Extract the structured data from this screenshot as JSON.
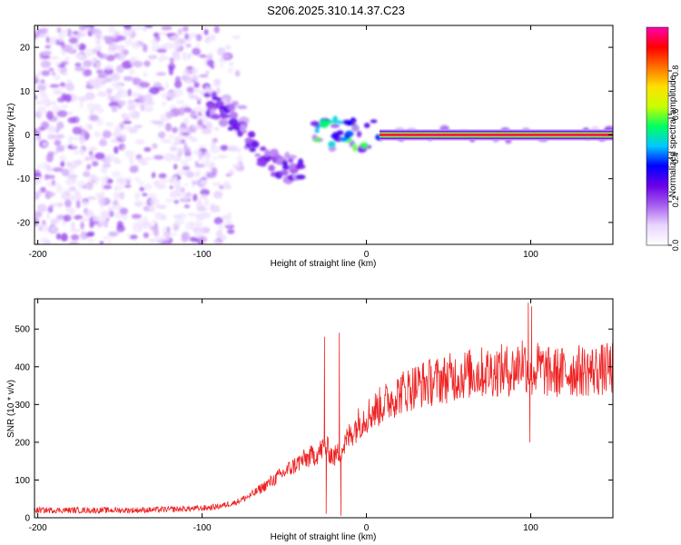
{
  "title": "S206.2025.310.14.37.C23",
  "chart_data": [
    {
      "type": "heatmap",
      "name": "spectrogram",
      "xlabel": "Height of straight line (km)",
      "ylabel": "Frequency (Hz)",
      "xlim": [
        -202,
        150
      ],
      "ylim": [
        -25,
        25
      ],
      "xticks": [
        -200,
        -100,
        0,
        100
      ],
      "xtick_labels": [
        "-200",
        "-100",
        "0",
        "100"
      ],
      "yticks": [
        20,
        10,
        0,
        -10,
        -20
      ],
      "ytick_labels": [
        "20",
        "10",
        "0",
        "-10",
        "-20"
      ],
      "colorbar": {
        "label": "Normalized spectral amplitude",
        "range": [
          0.0,
          1.0
        ],
        "ticks": [
          0.0,
          0.2,
          0.4,
          0.6,
          0.8
        ],
        "tick_labels": [
          "0.0",
          "0.2",
          "0.4",
          "0.6",
          "0.8"
        ],
        "colors": [
          "#ffffff",
          "#e9d6ff",
          "#a860f0",
          "#6a00e8",
          "#0000ff",
          "#00c8ff",
          "#00ff60",
          "#c8ff00",
          "#ffe000",
          "#ff7000",
          "#ff0000",
          "#ff00b0"
        ]
      },
      "features": {
        "noise_region_x": [
          -202,
          -95
        ],
        "descending_band": [
          {
            "x": -98,
            "y": 8
          },
          {
            "x": -90,
            "y": 6
          },
          {
            "x": -82,
            "y": 4
          },
          {
            "x": -75,
            "y": 1
          },
          {
            "x": -68,
            "y": -3
          },
          {
            "x": -60,
            "y": -6
          },
          {
            "x": -52,
            "y": -7
          },
          {
            "x": -45,
            "y": -8
          },
          {
            "x": -38,
            "y": -6
          }
        ],
        "carrier_line": {
          "x_start": 8,
          "x_end": 150,
          "frequency_hz": 0,
          "amplitude": 0.95
        }
      }
    },
    {
      "type": "line",
      "name": "snr",
      "xlabel": "Height of straight line (km)",
      "ylabel": "SNR (10 * v/v)",
      "xlim": [
        -202,
        150
      ],
      "ylim": [
        0,
        580
      ],
      "xticks": [
        -200,
        -100,
        0,
        100
      ],
      "xtick_labels": [
        "-200",
        "-100",
        "0",
        "100"
      ],
      "yticks": [
        0,
        100,
        200,
        300,
        400,
        500
      ],
      "ytick_labels": [
        "0",
        "100",
        "200",
        "300",
        "400",
        "500"
      ],
      "color": "#ee2222",
      "x": [
        -202,
        -180,
        -160,
        -140,
        -120,
        -100,
        -90,
        -80,
        -70,
        -60,
        -50,
        -40,
        -30,
        -25,
        -20,
        -15,
        -10,
        -5,
        0,
        10,
        20,
        30,
        40,
        50,
        60,
        70,
        80,
        90,
        95,
        100,
        105,
        110,
        120,
        130,
        140,
        150
      ],
      "values": [
        20,
        20,
        20,
        20,
        22,
        25,
        30,
        40,
        60,
        90,
        120,
        150,
        170,
        190,
        160,
        180,
        220,
        250,
        270,
        300,
        330,
        350,
        360,
        370,
        380,
        385,
        390,
        390,
        420,
        380,
        400,
        385,
        385,
        390,
        390,
        395
      ],
      "spikes": [
        {
          "x": -25.5,
          "y": 480
        },
        {
          "x": -24.5,
          "y": 10
        },
        {
          "x": -16.5,
          "y": 490
        },
        {
          "x": -15.5,
          "y": 5
        },
        {
          "x": 98.5,
          "y": 570
        },
        {
          "x": 99.5,
          "y": 200
        },
        {
          "x": 100.5,
          "y": 560
        }
      ]
    }
  ]
}
